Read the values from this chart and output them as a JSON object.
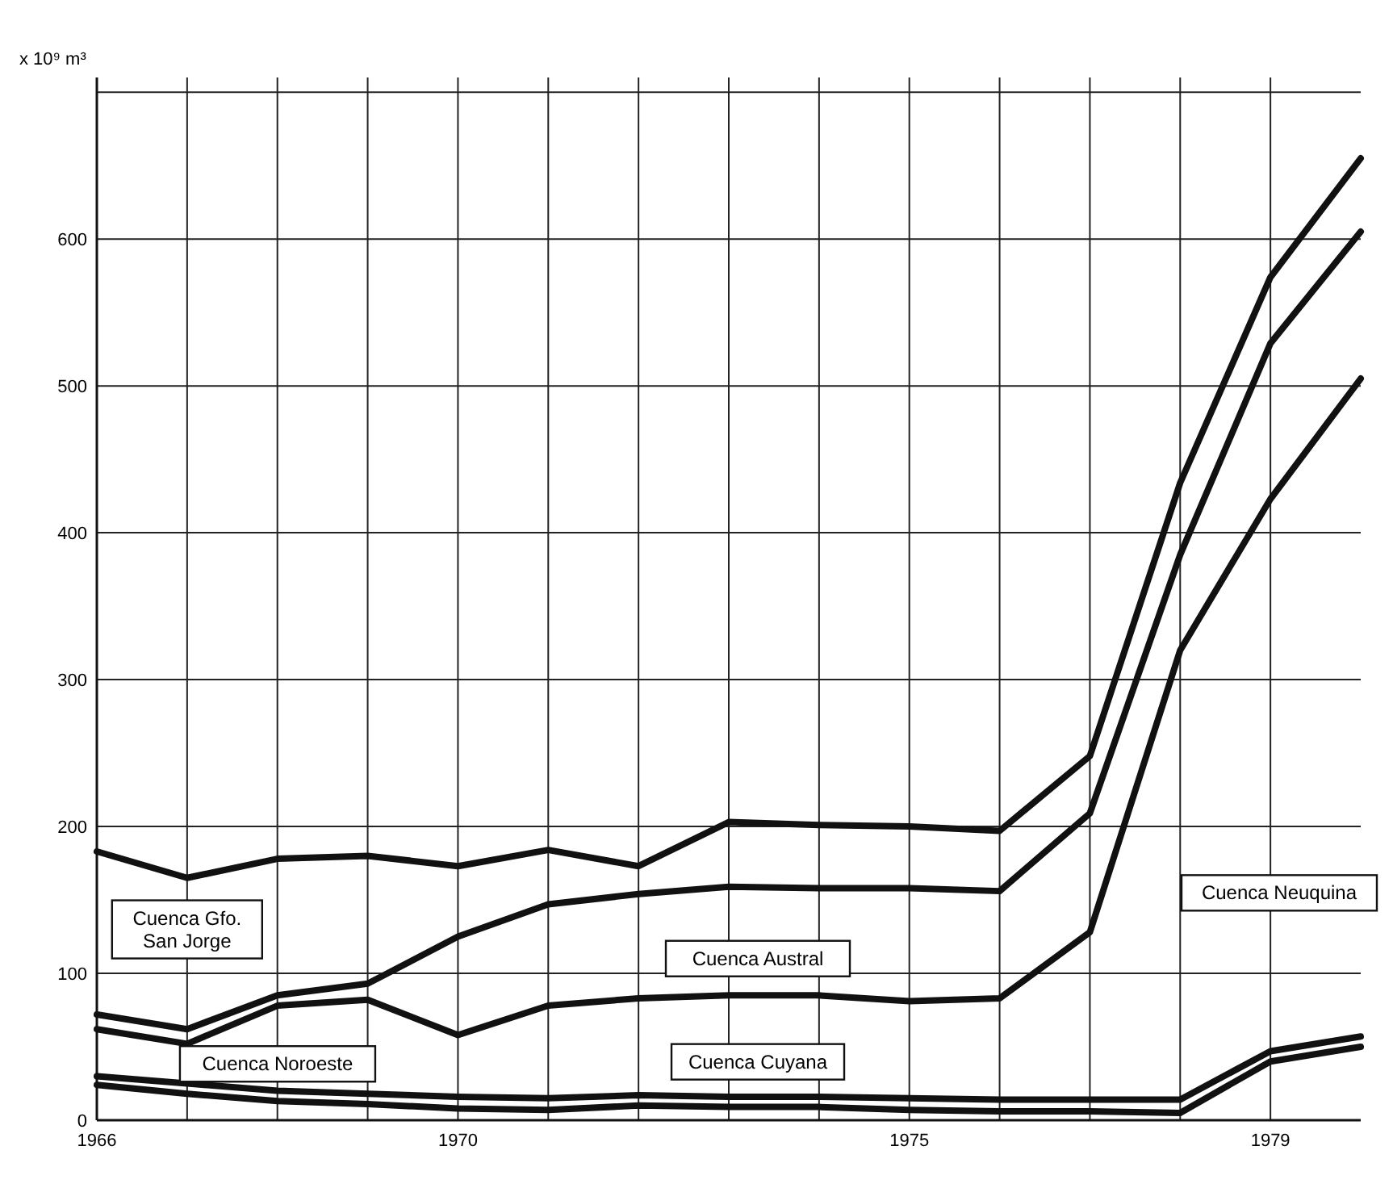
{
  "chart_data": {
    "type": "line",
    "ylabel": "x 10⁹ m³",
    "x": [
      1966,
      1967,
      1968,
      1969,
      1970,
      1971,
      1972,
      1973,
      1974,
      1975,
      1976,
      1977,
      1978,
      1979,
      1980
    ],
    "xlim": [
      1966,
      1980
    ],
    "xticks": [
      1966,
      {
        "value": 1967,
        "label": null
      },
      {
        "value": 1968,
        "label": null
      },
      {
        "value": 1969,
        "label": null
      },
      1970,
      {
        "value": 1971,
        "label": null
      },
      {
        "value": 1972,
        "label": null
      },
      {
        "value": 1973,
        "label": null
      },
      {
        "value": 1974,
        "label": null
      },
      1975,
      {
        "value": 1976,
        "label": null
      },
      {
        "value": 1977,
        "label": null
      },
      {
        "value": 1978,
        "label": null
      },
      1979
    ],
    "ylim": [
      0,
      710
    ],
    "yticks": [
      0,
      100,
      200,
      300,
      400,
      500,
      600,
      {
        "value": 700,
        "label": null
      }
    ],
    "grid": true,
    "marker": "none",
    "line_style": "solid",
    "series": [
      {
        "color": "#111111",
        "values": [
          183,
          165,
          178,
          180,
          173,
          184,
          173,
          203,
          201,
          200,
          197,
          248,
          434,
          574,
          655
        ]
      },
      {
        "color": "#111111",
        "values": [
          72,
          62,
          85,
          93,
          125,
          147,
          154,
          159,
          158,
          158,
          156,
          209,
          385,
          529,
          605
        ]
      },
      {
        "color": "#111111",
        "values": [
          62,
          52,
          78,
          82,
          58,
          78,
          83,
          85,
          85,
          81,
          83,
          128,
          320,
          423,
          505
        ]
      },
      {
        "color": "#111111",
        "values": [
          30,
          25,
          20,
          18,
          16,
          15,
          17,
          16,
          16,
          15,
          14,
          14,
          14,
          47,
          57
        ]
      },
      {
        "color": "#111111",
        "values": [
          24,
          18,
          13,
          11,
          8,
          7,
          10,
          9,
          9,
          7,
          6,
          6,
          5,
          40,
          50
        ]
      }
    ],
    "annotations": [
      "Cuenca Gfo.\nSan Jorge",
      "Cuenca Austral",
      "Cuenca Neuquina",
      "Cuenca Noroeste",
      "Cuenca Cuyana"
    ]
  }
}
